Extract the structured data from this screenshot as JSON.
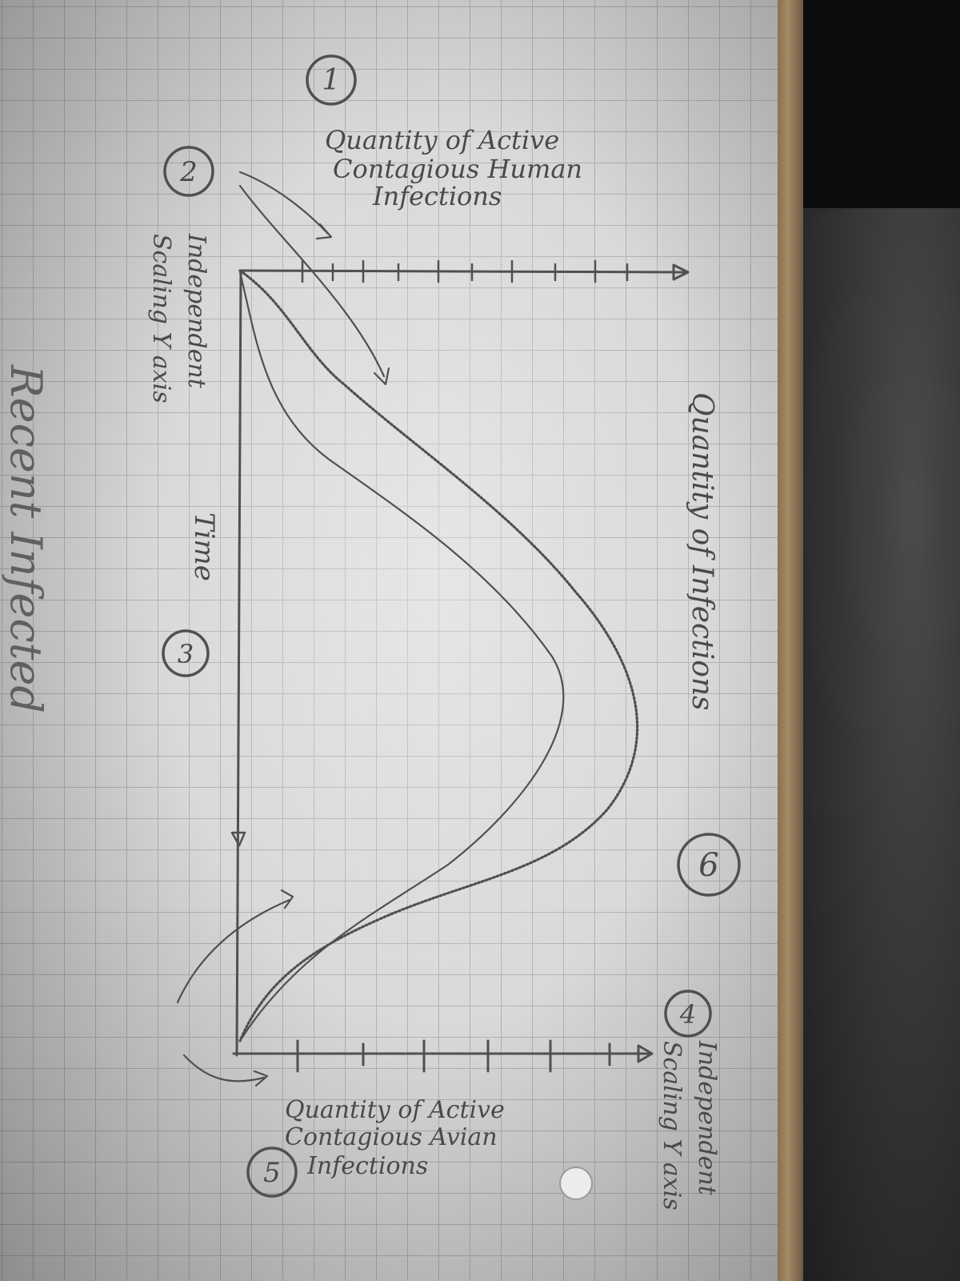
{
  "labels": {
    "num1": "1",
    "title_active_human": [
      "Quantity of Active",
      "Contagious Human",
      "Infections"
    ],
    "num2": "2",
    "independent_scaling_left": [
      "Independent",
      "Scaling Y axis"
    ],
    "time_label": "Time",
    "num3": "3",
    "total_infections": "Quantity of Infections",
    "num6": "6",
    "num4": "4",
    "active_avian": [
      "Quantity of Active",
      "Contagious Avian",
      "Infections"
    ],
    "num5": "5",
    "independent_scaling_right": [
      "Independent",
      "Scaling Y axis"
    ],
    "bottom_scrawl": "Recent Infected"
  }
}
